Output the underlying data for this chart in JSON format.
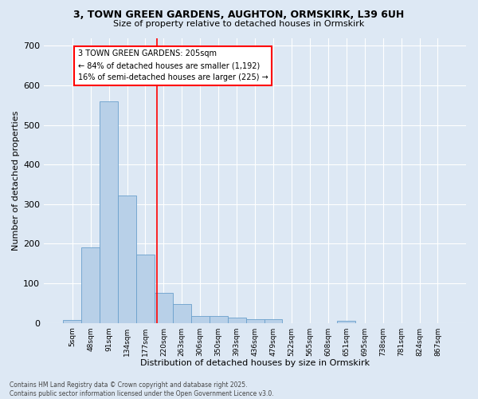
{
  "title_line1": "3, TOWN GREEN GARDENS, AUGHTON, ORMSKIRK, L39 6UH",
  "title_line2": "Size of property relative to detached houses in Ormskirk",
  "xlabel": "Distribution of detached houses by size in Ormskirk",
  "ylabel": "Number of detached properties",
  "bar_labels": [
    "5sqm",
    "48sqm",
    "91sqm",
    "134sqm",
    "177sqm",
    "220sqm",
    "263sqm",
    "306sqm",
    "350sqm",
    "393sqm",
    "436sqm",
    "479sqm",
    "522sqm",
    "565sqm",
    "608sqm",
    "651sqm",
    "695sqm",
    "738sqm",
    "781sqm",
    "824sqm",
    "867sqm"
  ],
  "bar_values": [
    8,
    190,
    560,
    322,
    172,
    75,
    48,
    18,
    18,
    13,
    10,
    10,
    0,
    0,
    0,
    5,
    0,
    0,
    0,
    0,
    0
  ],
  "bar_color": "#b8d0e8",
  "bar_edge_color": "#6aa0cc",
  "annotation_box_text": "3 TOWN GREEN GARDENS: 205sqm\n← 84% of detached houses are smaller (1,192)\n16% of semi-detached houses are larger (225) →",
  "ylim": [
    0,
    720
  ],
  "yticks": [
    0,
    100,
    200,
    300,
    400,
    500,
    600,
    700
  ],
  "background_color": "#dde8f4",
  "grid_color": "#ffffff",
  "footer_line1": "Contains HM Land Registry data © Crown copyright and database right 2025.",
  "footer_line2": "Contains public sector information licensed under the Open Government Licence v3.0."
}
